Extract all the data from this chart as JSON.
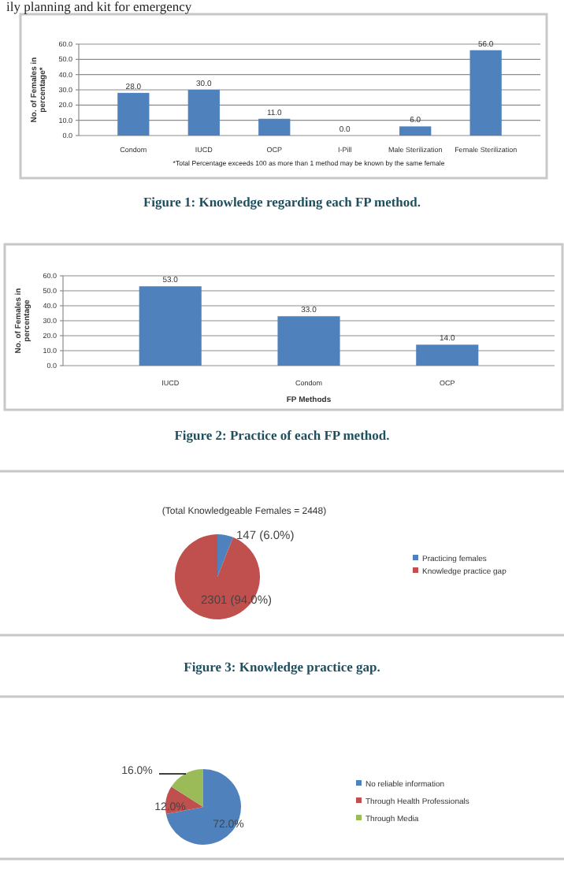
{
  "chart_data": [
    {
      "type": "bar",
      "categories": [
        "Condom",
        "IUCD",
        "OCP",
        "I-Pill",
        "Male Sterilization",
        "Female Sterilization"
      ],
      "values": [
        28,
        30,
        11,
        0,
        6,
        56
      ],
      "color": "#4f81bd",
      "value_labels": [
        "28.0",
        "30.0",
        "11.0",
        "0.0",
        "6.0",
        "56.0"
      ],
      "ylabel": "No. of Females in percentage*",
      "ylim": [
        0,
        60
      ],
      "yticks": [
        {
          "value": 0,
          "label": "0.0"
        },
        {
          "value": 10,
          "label": "10.0"
        },
        {
          "value": 20,
          "label": "20.0"
        },
        {
          "value": 30,
          "label": "30.0"
        },
        {
          "value": 40,
          "label": "40.0"
        },
        {
          "value": 50,
          "label": "50.0"
        },
        {
          "value": 60,
          "label": "60.0"
        }
      ],
      "grid": "y",
      "annotations": [
        "*Total Percentage exceeds 100 as more than 1 method may be known by the same female",
        "Figure 1: Knowledge regarding each FP method.",
        "ily planning and kit for emergency"
      ]
    },
    {
      "type": "bar",
      "categories": [
        "IUCD",
        "Condom",
        "OCP"
      ],
      "values": [
        53,
        33,
        14
      ],
      "color": "#4f81bd",
      "value_labels": [
        "53.0",
        "33.0",
        "14.0"
      ],
      "xlabel": "FP Methods",
      "ylabel": "No. of Females in percentage",
      "ylim": [
        0,
        60
      ],
      "yticks": [
        {
          "value": 0,
          "label": "0.0"
        },
        {
          "value": 10,
          "label": "10.0"
        },
        {
          "value": 20,
          "label": "20.0"
        },
        {
          "value": 30,
          "label": "30.0"
        },
        {
          "value": 40,
          "label": "40.0"
        },
        {
          "value": 50,
          "label": "50.0"
        },
        {
          "value": 60,
          "label": "60.0"
        }
      ],
      "grid": "y",
      "annotations": [
        "Figure 2: Practice of each FP method."
      ]
    },
    {
      "type": "pie",
      "title": "(Total Knowledgeable Females = 2448)",
      "categories": [
        "Practicing females",
        "Knowledge practice gap"
      ],
      "values": [
        147,
        2301
      ],
      "colors": [
        "#4f81bd",
        "#c0504d"
      ],
      "value_labels": [
        "147 (6.0%)",
        "2301 (94.0%)"
      ],
      "legend": "right",
      "annotations": [
        "Figure 3: Knowledge practice gap."
      ]
    },
    {
      "type": "pie",
      "categories": [
        "No reliable information",
        "Through Health Professionals",
        "Through Media"
      ],
      "values": [
        72,
        12,
        16
      ],
      "colors": [
        "#4f81bd",
        "#c0504d",
        "#9bbb59"
      ],
      "value_labels": [
        "72.0%",
        "12.0%",
        "16.0%"
      ],
      "legend": "right"
    }
  ]
}
